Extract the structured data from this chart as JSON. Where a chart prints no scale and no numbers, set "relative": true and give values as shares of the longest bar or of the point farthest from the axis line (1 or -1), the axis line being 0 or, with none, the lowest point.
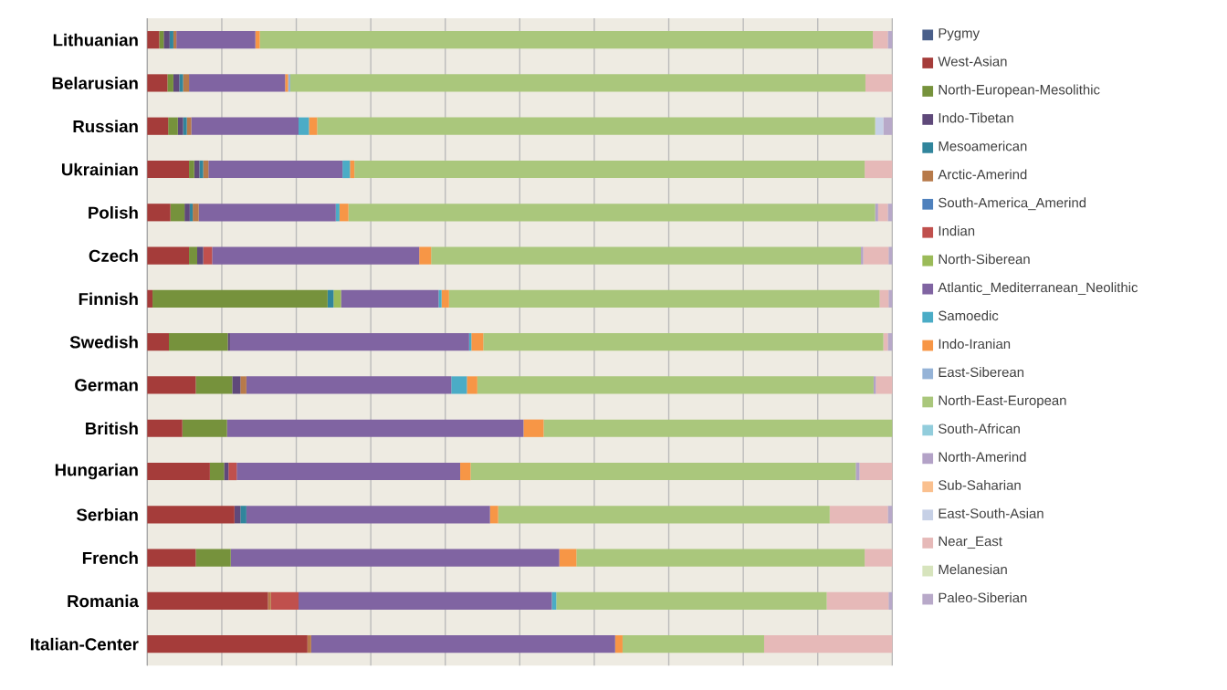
{
  "chart_data": {
    "type": "bar",
    "orientation": "horizontal",
    "stacked": true,
    "relative": true,
    "grid": "x",
    "legend": "right",
    "tick_labels": "y",
    "categories": [
      "Lithuanian",
      "Belarusian",
      "Russian",
      "Ukrainian",
      "Polish",
      "Czech",
      "Finnish",
      "Swedish",
      "German",
      "British",
      "Hungarian",
      "Serbian",
      "French",
      "Romania",
      "Italian-Center"
    ],
    "series": [
      {
        "name": "Pygmy",
        "color": "#4a5f8a",
        "values": [
          0,
          0,
          0,
          0,
          0,
          0,
          0,
          0,
          0,
          0,
          0,
          0,
          0,
          0,
          0
        ]
      },
      {
        "name": "West-Asian",
        "color": "#a53c3a",
        "values": [
          0.016,
          0.027,
          0.028,
          0.056,
          0.031,
          0.056,
          0.007,
          0.029,
          0.065,
          0.047,
          0.084,
          0.117,
          0.065,
          0.162,
          0.215
        ]
      },
      {
        "name": "North-European-Mesolithic",
        "color": "#76923c",
        "values": [
          0.006,
          0.008,
          0.013,
          0.007,
          0.019,
          0.011,
          0.235,
          0.079,
          0.049,
          0.06,
          0.019,
          0,
          0.047,
          0,
          0
        ]
      },
      {
        "name": "Indo-Tibetan",
        "color": "#5f497a",
        "values": [
          0.008,
          0.008,
          0.007,
          0.007,
          0.007,
          0.008,
          0,
          0.003,
          0.011,
          0,
          0.006,
          0.008,
          0,
          0,
          0
        ]
      },
      {
        "name": "Mesoamerican",
        "color": "#31859c",
        "values": [
          0.005,
          0.005,
          0.005,
          0.005,
          0.004,
          0,
          0.008,
          0,
          0,
          0,
          0,
          0.008,
          0,
          0,
          0
        ]
      },
      {
        "name": "Arctic-Amerind",
        "color": "#b77a4a",
        "values": [
          0.004,
          0.008,
          0.006,
          0.007,
          0.008,
          0,
          0,
          0,
          0.008,
          0,
          0,
          0,
          0,
          0.004,
          0.005
        ]
      },
      {
        "name": "South-America_Amerind",
        "color": "#4f81bd",
        "values": [
          0,
          0,
          0,
          0,
          0,
          0,
          0,
          0,
          0,
          0,
          0,
          0,
          0,
          0,
          0
        ]
      },
      {
        "name": "Indian",
        "color": "#c0504d",
        "values": [
          0,
          0,
          0,
          0,
          0,
          0.012,
          0,
          0,
          0,
          0,
          0.011,
          0,
          0,
          0.037,
          0
        ]
      },
      {
        "name": "North-Siberean",
        "color": "#9bbb59",
        "values": [
          0,
          0,
          0,
          0,
          0,
          0,
          0.01,
          0,
          0,
          0,
          0,
          0,
          0,
          0,
          0
        ]
      },
      {
        "name": "Atlantic_Mediterranean_Neolithic",
        "color": "#8064a2",
        "values": [
          0.106,
          0.129,
          0.144,
          0.18,
          0.184,
          0.278,
          0.131,
          0.321,
          0.275,
          0.398,
          0.3,
          0.327,
          0.441,
          0.34,
          0.408
        ]
      },
      {
        "name": "Samoedic",
        "color": "#4bacc6",
        "values": [
          0,
          0,
          0.014,
          0.01,
          0.005,
          0,
          0.004,
          0.003,
          0.021,
          0,
          0,
          0,
          0,
          0.006,
          0
        ]
      },
      {
        "name": "Indo-Iranian",
        "color": "#f79646",
        "values": [
          0.006,
          0.004,
          0.011,
          0.006,
          0.012,
          0.016,
          0.01,
          0.016,
          0.014,
          0.027,
          0.014,
          0.011,
          0.023,
          0,
          0.01
        ]
      },
      {
        "name": "East-Siberean",
        "color": "#95b3d7",
        "values": [
          0,
          0.003,
          0,
          0,
          0,
          0,
          0,
          0,
          0,
          0,
          0,
          0,
          0,
          0,
          0
        ]
      },
      {
        "name": "North-East-European",
        "color": "#aac77c",
        "values": [
          0.823,
          0.772,
          0.749,
          0.685,
          0.707,
          0.577,
          0.578,
          0.537,
          0.532,
          0.468,
          0.517,
          0.445,
          0.387,
          0.363,
          0.19
        ]
      },
      {
        "name": "South-African",
        "color": "#92cddc",
        "values": [
          0,
          0,
          0,
          0,
          0,
          0,
          0,
          0,
          0,
          0,
          0,
          0,
          0,
          0,
          0
        ]
      },
      {
        "name": "North-Amerind",
        "color": "#b3a2c7",
        "values": [
          0,
          0,
          0,
          0,
          0.004,
          0.003,
          0,
          0,
          0.003,
          0,
          0.005,
          0,
          0,
          0,
          0
        ]
      },
      {
        "name": "Sub-Saharian",
        "color": "#fac08f",
        "values": [
          0,
          0,
          0,
          0,
          0,
          0,
          0,
          0,
          0,
          0,
          0,
          0,
          0,
          0,
          0
        ]
      },
      {
        "name": "East-South-Asian",
        "color": "#c6d0e6",
        "values": [
          0,
          0,
          0.011,
          0,
          0,
          0,
          0,
          0,
          0,
          0,
          0,
          0,
          0,
          0,
          0
        ]
      },
      {
        "name": "Near_East",
        "color": "#e6b9b8",
        "values": [
          0.02,
          0.036,
          0,
          0.037,
          0.013,
          0.034,
          0.012,
          0.006,
          0.022,
          0,
          0.044,
          0.078,
          0.037,
          0.083,
          0.172
        ]
      },
      {
        "name": "Melanesian",
        "color": "#d7e4bd",
        "values": [
          0,
          0,
          0,
          0,
          0,
          0,
          0,
          0,
          0,
          0,
          0,
          0,
          0,
          0,
          0
        ]
      },
      {
        "name": "Paleo-Siberian",
        "color": "#b8a9c9",
        "values": [
          0.006,
          0,
          0.012,
          0,
          0.006,
          0.005,
          0.005,
          0.006,
          0,
          0,
          0,
          0.006,
          0,
          0.005,
          0
        ]
      }
    ]
  }
}
